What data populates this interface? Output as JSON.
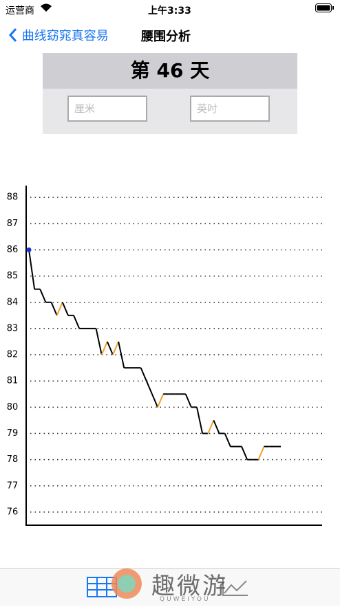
{
  "status_bar": {
    "carrier": "运营商",
    "time": "上午3:33"
  },
  "nav": {
    "back": "曲线窈窕真容易",
    "title": "腰围分析"
  },
  "panel": {
    "day": "第 46 天",
    "cm_placeholder": "厘米",
    "inch_placeholder": "英吋"
  },
  "watermark": {
    "text": "趣微游",
    "sub": "QUWEIYOU"
  },
  "chart_data": {
    "type": "line",
    "series": [
      {
        "color": "#000000",
        "rise_color": "#f0a030",
        "start_color": "#1a2fd0",
        "values": [
          86,
          84.5,
          84.5,
          84,
          84,
          83.5,
          84,
          83.5,
          83.5,
          83,
          83,
          83,
          83,
          82,
          82.5,
          82,
          82.5,
          81.5,
          81.5,
          81.5,
          81.5,
          81,
          80.5,
          80,
          80.5,
          80.5,
          80.5,
          80.5,
          80.5,
          80,
          80,
          79,
          79,
          79.5,
          79,
          79,
          78.5,
          78.5,
          78.5,
          78,
          78,
          78,
          78.5,
          78.5,
          78.5,
          78.5
        ]
      }
    ],
    "ylim": [
      75.5,
      88.45
    ],
    "yticks": [
      76,
      77,
      78,
      79,
      80,
      81,
      82,
      83,
      84,
      85,
      86,
      87,
      88
    ],
    "grid": true
  }
}
